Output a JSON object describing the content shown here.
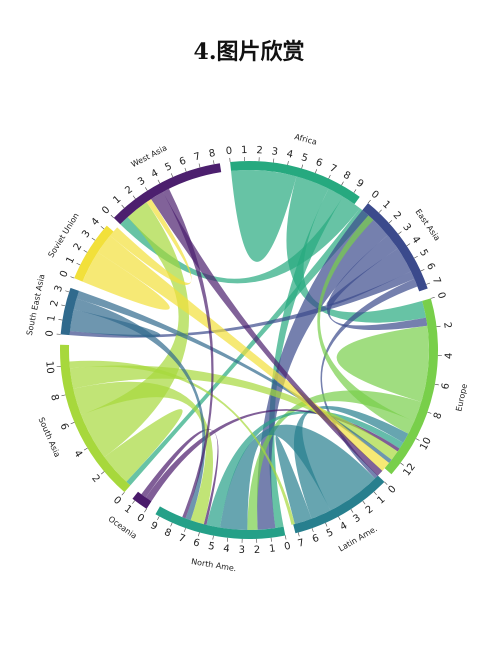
{
  "page": {
    "heading": "4.图片欣赏"
  },
  "chart_data": {
    "type": "chord",
    "title": "",
    "regions": [
      {
        "name": "Africa",
        "value": 9.5,
        "color": "#26a97f",
        "ticks": [
          "0",
          "1",
          "2",
          "3",
          "4",
          "5",
          "6",
          "7",
          "8",
          "9"
        ]
      },
      {
        "name": "East Asia",
        "value": 7.3,
        "color": "#3b4a8c",
        "ticks": [
          "0",
          "1",
          "2",
          "3",
          "4",
          "5",
          "6",
          "7"
        ]
      },
      {
        "name": "Europe",
        "value": 13,
        "color": "#78cf4a",
        "ticks": [
          "0",
          "2",
          "4",
          "6",
          "8",
          "10",
          "12"
        ]
      },
      {
        "name": "Latin Ame.",
        "value": 7.2,
        "color": "#277f8e",
        "ticks": [
          "0",
          "1",
          "2",
          "3",
          "4",
          "5",
          "6",
          "7"
        ]
      },
      {
        "name": "North Ame.",
        "value": 9.3,
        "color": "#25a088",
        "ticks": [
          "0",
          "1",
          "2",
          "3",
          "4",
          "5",
          "6",
          "7",
          "8",
          "9"
        ]
      },
      {
        "name": "Oceania",
        "value": 1.2,
        "color": "#4a1a6b",
        "ticks": [
          "0",
          "1"
        ]
      },
      {
        "name": "South Asia",
        "value": 11.5,
        "color": "#a7d83c",
        "ticks": [
          "0",
          "2",
          "4",
          "6",
          "8",
          "10"
        ]
      },
      {
        "name": "South East Asia",
        "value": 3.3,
        "color": "#306a8d",
        "ticks": [
          "0",
          "1",
          "2",
          "3"
        ]
      },
      {
        "name": "Soviet Union",
        "value": 4.3,
        "color": "#f2e03a",
        "ticks": [
          "0",
          "1",
          "2",
          "3",
          "4"
        ]
      },
      {
        "name": "West Asia",
        "value": 8.4,
        "color": "#4c1f6e",
        "ticks": [
          "0",
          "1",
          "2",
          "3",
          "4",
          "5",
          "6",
          "7",
          "8"
        ]
      }
    ],
    "flows": [
      {
        "from": "Africa",
        "to": "Africa",
        "value": 3.0
      },
      {
        "from": "Africa",
        "to": "Europe",
        "value": 2.5
      },
      {
        "from": "Africa",
        "to": "North Ame.",
        "value": 1.2
      },
      {
        "from": "Africa",
        "to": "West Asia",
        "value": 1.5
      },
      {
        "from": "Africa",
        "to": "South Asia",
        "value": 0.8
      },
      {
        "from": "East Asia",
        "to": "North Ame.",
        "value": 2.6
      },
      {
        "from": "East Asia",
        "to": "Europe",
        "value": 1.2
      },
      {
        "from": "East Asia",
        "to": "East Asia",
        "value": 1.2
      },
      {
        "from": "East Asia",
        "to": "South East Asia",
        "value": 0.6
      },
      {
        "from": "East Asia",
        "to": "Latin Ame.",
        "value": 0.6
      },
      {
        "from": "Europe",
        "to": "Europe",
        "value": 3.5
      },
      {
        "from": "Europe",
        "to": "North Ame.",
        "value": 1.5
      },
      {
        "from": "Europe",
        "to": "Africa",
        "value": 1.0
      },
      {
        "from": "Latin Ame.",
        "to": "North Ame.",
        "value": 4.0
      },
      {
        "from": "Latin Ame.",
        "to": "Europe",
        "value": 1.5
      },
      {
        "from": "Latin Ame.",
        "to": "Latin Ame.",
        "value": 0.8
      },
      {
        "from": "North Ame.",
        "to": "Europe",
        "value": 1.0
      },
      {
        "from": "Oceania",
        "to": "Europe",
        "value": 0.5
      },
      {
        "from": "Oceania",
        "to": "North Ame.",
        "value": 0.4
      },
      {
        "from": "South Asia",
        "to": "South Asia",
        "value": 1.5
      },
      {
        "from": "South Asia",
        "to": "West Asia",
        "value": 3.5
      },
      {
        "from": "South Asia",
        "to": "North Ame.",
        "value": 2.0
      },
      {
        "from": "South Asia",
        "to": "Europe",
        "value": 1.5
      },
      {
        "from": "South Asia",
        "to": "Latin Ame.",
        "value": 0.5
      },
      {
        "from": "South East Asia",
        "to": "South East Asia",
        "value": 1.0
      },
      {
        "from": "South East Asia",
        "to": "North Ame.",
        "value": 0.8
      },
      {
        "from": "South East Asia",
        "to": "Europe",
        "value": 0.6
      },
      {
        "from": "Soviet Union",
        "to": "Soviet Union",
        "value": 1.5
      },
      {
        "from": "Soviet Union",
        "to": "Europe",
        "value": 1.5
      },
      {
        "from": "Soviet Union",
        "to": "West Asia",
        "value": 0.8
      },
      {
        "from": "West Asia",
        "to": "Europe",
        "value": 1.0
      },
      {
        "from": "West Asia",
        "to": "North Ame.",
        "value": 0.5
      }
    ]
  }
}
